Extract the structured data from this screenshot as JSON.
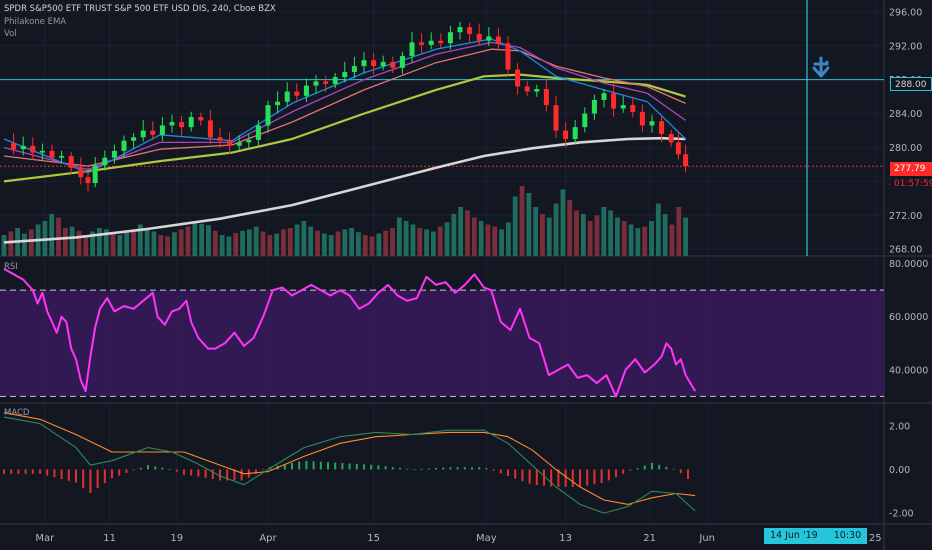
{
  "header": {
    "title": "SPDR S&P500 ETF TRUST S&P 500 ETF USD DIS, 240, Cboe BZX",
    "indicator1": "Philakone EMA",
    "indicator2": "Vol"
  },
  "chart_data": [
    {
      "type": "candlestick",
      "title": "SPDR S&P500 ETF TRUST S&P 500 ETF USD DIS, 240, Cboe BZX",
      "y_ticks": [
        "296.00",
        "292.00",
        "288.00",
        "284.00",
        "280.00",
        "276.00",
        "272.00",
        "268.00"
      ],
      "ylim": [
        267.2,
        297.4
      ],
      "x_ticks": [
        "Mar",
        "11",
        "19",
        "Apr",
        "15",
        "May",
        "13",
        "21",
        "Jun",
        "25"
      ],
      "last_price": "277.79",
      "countdown": "01:57:59",
      "horizontal_lines": [
        288.0
      ],
      "horizontal_line_label": "288.00",
      "close_path": [
        [
          0,
          280.5
        ],
        [
          0.4,
          279.8
        ],
        [
          0.8,
          280.2
        ],
        [
          1.2,
          279.4
        ],
        [
          1.6,
          279.6
        ],
        [
          2.0,
          278.8
        ],
        [
          2.4,
          279.0
        ],
        [
          2.8,
          277.6
        ],
        [
          3.2,
          276.5
        ],
        [
          3.5,
          275.8
        ],
        [
          3.8,
          277.9
        ],
        [
          4.2,
          278.8
        ],
        [
          4.6,
          279.6
        ],
        [
          5.0,
          280.8
        ],
        [
          5.4,
          281.2
        ],
        [
          5.8,
          282.0
        ],
        [
          6.2,
          281.5
        ],
        [
          6.6,
          282.6
        ],
        [
          7.0,
          283.0
        ],
        [
          7.4,
          282.4
        ],
        [
          7.8,
          283.6
        ],
        [
          8.2,
          283.2
        ],
        [
          8.6,
          281.2
        ],
        [
          9.0,
          280.8
        ],
        [
          9.4,
          280.2
        ],
        [
          9.8,
          280.6
        ],
        [
          10.2,
          280.9
        ],
        [
          10.6,
          282.6
        ],
        [
          11.0,
          285.0
        ],
        [
          11.4,
          285.4
        ],
        [
          11.8,
          286.6
        ],
        [
          12.2,
          286.1
        ],
        [
          12.6,
          287.3
        ],
        [
          13.0,
          287.8
        ],
        [
          13.4,
          287.5
        ],
        [
          13.8,
          288.3
        ],
        [
          14.2,
          288.9
        ],
        [
          14.6,
          289.6
        ],
        [
          15.0,
          290.3
        ],
        [
          15.4,
          289.6
        ],
        [
          15.8,
          290.1
        ],
        [
          16.2,
          289.4
        ],
        [
          16.6,
          290.8
        ],
        [
          17.0,
          292.4
        ],
        [
          17.4,
          292.1
        ],
        [
          17.8,
          292.6
        ],
        [
          18.2,
          292.3
        ],
        [
          18.6,
          293.6
        ],
        [
          19.0,
          294.2
        ],
        [
          19.4,
          293.4
        ],
        [
          19.8,
          292.6
        ],
        [
          20.2,
          293.1
        ],
        [
          20.6,
          292.3
        ],
        [
          21.0,
          289.2
        ],
        [
          21.4,
          287.2
        ],
        [
          21.8,
          286.6
        ],
        [
          22.2,
          286.9
        ],
        [
          22.6,
          285.0
        ],
        [
          23.0,
          282.0
        ],
        [
          23.4,
          281.0
        ],
        [
          23.8,
          282.4
        ],
        [
          24.2,
          284.0
        ],
        [
          24.6,
          285.6
        ],
        [
          25.0,
          286.4
        ],
        [
          25.4,
          284.6
        ],
        [
          25.8,
          285.0
        ],
        [
          26.2,
          284.2
        ],
        [
          26.6,
          282.6
        ],
        [
          27.0,
          283.1
        ],
        [
          27.4,
          281.6
        ],
        [
          27.8,
          280.6
        ],
        [
          28.1,
          279.2
        ],
        [
          28.4,
          277.8
        ]
      ],
      "ema_fast": [
        [
          0,
          281.0
        ],
        [
          3.5,
          277.0
        ],
        [
          6.5,
          281.5
        ],
        [
          9.5,
          280.8
        ],
        [
          12.0,
          285.2
        ],
        [
          15.0,
          288.8
        ],
        [
          18.0,
          291.6
        ],
        [
          20.3,
          292.8
        ],
        [
          21.5,
          291.4
        ],
        [
          23.0,
          288.4
        ],
        [
          25.0,
          286.8
        ],
        [
          26.8,
          285.4
        ],
        [
          28.4,
          281.0
        ]
      ],
      "ema_mid": [
        [
          0,
          280.0
        ],
        [
          3.5,
          277.4
        ],
        [
          6.5,
          280.6
        ],
        [
          9.5,
          280.6
        ],
        [
          12.0,
          284.2
        ],
        [
          15.0,
          288.0
        ],
        [
          18.0,
          291.0
        ],
        [
          20.3,
          292.4
        ],
        [
          21.5,
          291.8
        ],
        [
          23.0,
          289.4
        ],
        [
          25.0,
          287.6
        ],
        [
          26.8,
          286.4
        ],
        [
          28.4,
          283.2
        ]
      ],
      "ema_slow": [
        [
          0,
          279.0
        ],
        [
          3.5,
          277.8
        ],
        [
          6.5,
          279.8
        ],
        [
          9.5,
          280.3
        ],
        [
          12.0,
          283.0
        ],
        [
          15.0,
          286.8
        ],
        [
          18.0,
          290.0
        ],
        [
          20.3,
          291.6
        ],
        [
          21.5,
          291.4
        ],
        [
          23.0,
          289.6
        ],
        [
          25.0,
          288.2
        ],
        [
          26.8,
          287.2
        ],
        [
          28.4,
          285.2
        ]
      ],
      "ema_long": [
        [
          0,
          276.0
        ],
        [
          3.5,
          277.2
        ],
        [
          6.5,
          278.4
        ],
        [
          9.5,
          279.4
        ],
        [
          12.0,
          281.0
        ],
        [
          15.0,
          284.0
        ],
        [
          18.0,
          286.8
        ],
        [
          20.0,
          288.4
        ],
        [
          21.5,
          288.6
        ],
        [
          23.0,
          288.2
        ],
        [
          25.0,
          287.8
        ],
        [
          26.8,
          287.4
        ],
        [
          28.4,
          286.0
        ]
      ],
      "sma_200": [
        [
          0,
          268.8
        ],
        [
          3.0,
          269.4
        ],
        [
          6.0,
          270.4
        ],
        [
          9.0,
          271.6
        ],
        [
          12.0,
          273.2
        ],
        [
          15.0,
          275.4
        ],
        [
          18.0,
          277.6
        ],
        [
          20.0,
          279.0
        ],
        [
          22.0,
          279.9
        ],
        [
          24.0,
          280.6
        ],
        [
          26.0,
          281.0
        ],
        [
          27.4,
          281.1
        ],
        [
          28.4,
          281.0
        ]
      ],
      "volume_rel": [
        0.3,
        0.35,
        0.4,
        0.32,
        0.38,
        0.45,
        0.5,
        0.6,
        0.55,
        0.4,
        0.42,
        0.36,
        0.3,
        0.35,
        0.4,
        0.38,
        0.32,
        0.3,
        0.33,
        0.36,
        0.45,
        0.4,
        0.35,
        0.3,
        0.28,
        0.34,
        0.38,
        0.42,
        0.5,
        0.46,
        0.44,
        0.36,
        0.3,
        0.28,
        0.33,
        0.36,
        0.38,
        0.42,
        0.35,
        0.3,
        0.32,
        0.38,
        0.4,
        0.45,
        0.5,
        0.42,
        0.36,
        0.32,
        0.3,
        0.35,
        0.38,
        0.4,
        0.34,
        0.3,
        0.28,
        0.32,
        0.36,
        0.4,
        0.55,
        0.5,
        0.45,
        0.4,
        0.38,
        0.35,
        0.42,
        0.48,
        0.6,
        0.7,
        0.65,
        0.55,
        0.5,
        0.45,
        0.42,
        0.38,
        0.48,
        0.85,
        1.0,
        0.9,
        0.7,
        0.6,
        0.55,
        0.75,
        0.95,
        0.8,
        0.65,
        0.6,
        0.5,
        0.58,
        0.7,
        0.65,
        0.55,
        0.5,
        0.45,
        0.4,
        0.42,
        0.5,
        0.75,
        0.6,
        0.45,
        0.7,
        0.55
      ]
    },
    {
      "type": "line",
      "title": "RSI",
      "y_ticks": [
        "80.0000",
        "60.0000",
        "40.0000"
      ],
      "ylim": [
        27.5,
        82.5
      ],
      "bands": [
        70,
        30
      ],
      "values": [
        [
          0,
          78
        ],
        [
          0.4,
          76
        ],
        [
          0.8,
          74
        ],
        [
          1.2,
          70
        ],
        [
          1.4,
          65
        ],
        [
          1.6,
          69
        ],
        [
          1.8,
          62
        ],
        [
          2.0,
          58
        ],
        [
          2.2,
          54
        ],
        [
          2.4,
          60
        ],
        [
          2.6,
          58
        ],
        [
          2.8,
          48
        ],
        [
          3.0,
          44
        ],
        [
          3.2,
          36
        ],
        [
          3.4,
          32
        ],
        [
          3.6,
          45
        ],
        [
          3.8,
          56
        ],
        [
          4.0,
          63
        ],
        [
          4.3,
          67
        ],
        [
          4.6,
          62
        ],
        [
          5.0,
          64
        ],
        [
          5.4,
          63
        ],
        [
          5.8,
          66
        ],
        [
          6.2,
          69
        ],
        [
          6.4,
          60
        ],
        [
          6.7,
          57
        ],
        [
          7.0,
          62
        ],
        [
          7.3,
          63
        ],
        [
          7.6,
          66
        ],
        [
          7.8,
          58
        ],
        [
          8.1,
          52
        ],
        [
          8.5,
          48
        ],
        [
          8.8,
          48
        ],
        [
          9.2,
          50
        ],
        [
          9.6,
          54
        ],
        [
          10.0,
          49
        ],
        [
          10.4,
          52
        ],
        [
          10.8,
          60
        ],
        [
          11.2,
          70
        ],
        [
          11.6,
          71
        ],
        [
          12.0,
          68
        ],
        [
          12.4,
          70
        ],
        [
          12.8,
          72
        ],
        [
          13.2,
          70
        ],
        [
          13.6,
          68
        ],
        [
          14.0,
          70
        ],
        [
          14.4,
          68
        ],
        [
          14.8,
          63
        ],
        [
          15.2,
          65
        ],
        [
          15.6,
          69
        ],
        [
          16.0,
          72
        ],
        [
          16.4,
          68
        ],
        [
          16.8,
          66
        ],
        [
          17.2,
          67
        ],
        [
          17.6,
          75
        ],
        [
          18.0,
          72
        ],
        [
          18.4,
          73
        ],
        [
          18.8,
          69
        ],
        [
          19.2,
          72
        ],
        [
          19.6,
          76
        ],
        [
          20.0,
          71
        ],
        [
          20.3,
          70
        ],
        [
          20.7,
          58
        ],
        [
          21.1,
          55
        ],
        [
          21.5,
          63
        ],
        [
          21.9,
          52
        ],
        [
          22.3,
          50
        ],
        [
          22.7,
          38
        ],
        [
          23.1,
          40
        ],
        [
          23.5,
          42
        ],
        [
          23.9,
          37
        ],
        [
          24.3,
          38
        ],
        [
          24.7,
          35
        ],
        [
          25.1,
          38
        ],
        [
          25.5,
          30
        ],
        [
          25.9,
          40
        ],
        [
          26.3,
          44
        ],
        [
          26.7,
          39
        ],
        [
          27.1,
          42
        ],
        [
          27.4,
          45
        ],
        [
          27.6,
          50
        ],
        [
          27.8,
          48
        ],
        [
          28.0,
          42
        ],
        [
          28.2,
          44
        ],
        [
          28.4,
          38
        ],
        [
          28.8,
          32
        ]
      ]
    },
    {
      "type": "line",
      "title": "MACD",
      "y_ticks": [
        "2.00",
        "0.00",
        "-2.00"
      ],
      "ylim": [
        -2.5,
        3.0
      ],
      "macd": [
        [
          0,
          2.4
        ],
        [
          1.5,
          2.1
        ],
        [
          3.0,
          1.0
        ],
        [
          3.6,
          0.2
        ],
        [
          4.5,
          0.4
        ],
        [
          6.0,
          1.0
        ],
        [
          7.0,
          0.8
        ],
        [
          8.0,
          0.3
        ],
        [
          9.0,
          -0.3
        ],
        [
          10.0,
          -0.7
        ],
        [
          11.0,
          0.0
        ],
        [
          12.5,
          1.0
        ],
        [
          14.0,
          1.5
        ],
        [
          15.5,
          1.7
        ],
        [
          17.0,
          1.6
        ],
        [
          18.5,
          1.8
        ],
        [
          20.0,
          1.8
        ],
        [
          21.0,
          1.2
        ],
        [
          22.0,
          0.2
        ],
        [
          23.0,
          -0.8
        ],
        [
          24.0,
          -1.6
        ],
        [
          25.0,
          -2.0
        ],
        [
          26.0,
          -1.7
        ],
        [
          27.0,
          -1.0
        ],
        [
          28.0,
          -1.1
        ],
        [
          28.8,
          -1.9
        ]
      ],
      "signal": [
        [
          0,
          2.6
        ],
        [
          1.5,
          2.3
        ],
        [
          3.0,
          1.6
        ],
        [
          4.5,
          0.8
        ],
        [
          6.0,
          0.8
        ],
        [
          7.5,
          0.8
        ],
        [
          9.0,
          0.2
        ],
        [
          10.0,
          -0.2
        ],
        [
          11.0,
          -0.1
        ],
        [
          12.5,
          0.6
        ],
        [
          14.0,
          1.2
        ],
        [
          15.5,
          1.5
        ],
        [
          17.0,
          1.6
        ],
        [
          18.5,
          1.7
        ],
        [
          20.0,
          1.7
        ],
        [
          21.0,
          1.5
        ],
        [
          22.0,
          0.9
        ],
        [
          23.0,
          0.0
        ],
        [
          24.0,
          -0.8
        ],
        [
          25.0,
          -1.4
        ],
        [
          26.0,
          -1.6
        ],
        [
          27.0,
          -1.3
        ],
        [
          28.0,
          -1.1
        ],
        [
          28.8,
          -1.2
        ]
      ]
    }
  ],
  "time_badge": {
    "date": "14 Jun '19",
    "time": "10:30"
  },
  "colors": {
    "bg": "#131722",
    "up": "#26e05a",
    "down": "#ff2a2a",
    "rsi": "#ff35f6",
    "rsi_band": "#3a1a5c",
    "sma": "#d6d6d6",
    "ema_fast": "#1e88e5",
    "ema_mid": "#ab47bc",
    "ema_slow": "#e57373",
    "ema_long": "#afc93e",
    "cyan": "#26c6da",
    "macd_line": "#2d8a5a",
    "signal_line": "#ff8a2a"
  }
}
